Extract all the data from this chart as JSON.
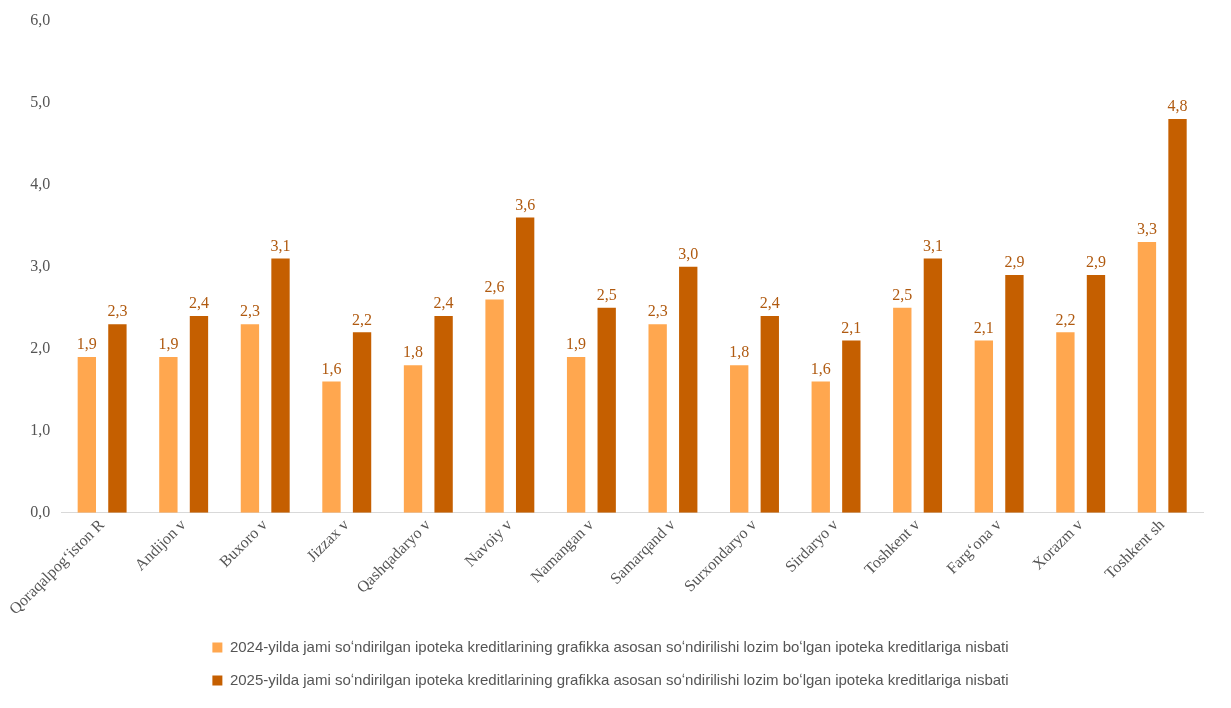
{
  "chart_data": {
    "type": "bar",
    "categories": [
      "Qoraqalpogʻiston R",
      "Andijon v",
      "Buxoro v",
      "Jizzax v",
      "Qashqadaryo v",
      "Navoiy v",
      "Namangan v",
      "Samarqand v",
      "Surxondaryo v",
      "Sirdaryo v",
      "Toshkent v",
      "Fargʻona v",
      "Xorazm v",
      "Toshkent sh"
    ],
    "series": [
      {
        "name": "2024-yilda jami soʻndirilgan ipoteka kreditlarining grafikka asosan soʻndirilishi lozim boʻlgan ipoteka kreditlariga nisbati",
        "color": "#ffa74f",
        "values": [
          1.9,
          1.9,
          2.3,
          1.6,
          1.8,
          2.6,
          1.9,
          2.3,
          1.8,
          1.6,
          2.5,
          2.1,
          2.2,
          3.3
        ],
        "value_labels": [
          "1,9",
          "1,9",
          "2,3",
          "1,6",
          "1,8",
          "2,6",
          "1,9",
          "2,3",
          "1,8",
          "1,6",
          "2,5",
          "2,1",
          "2,2",
          "3,3"
        ]
      },
      {
        "name": "2025-yilda jami soʻndirilgan ipoteka kreditlarining grafikka asosan soʻndirilishi lozim boʻlgan ipoteka kreditlariga nisbati",
        "color": "#c55f00",
        "values": [
          2.3,
          2.4,
          3.1,
          2.2,
          2.4,
          3.6,
          2.5,
          3.0,
          2.4,
          2.1,
          3.1,
          2.9,
          2.9,
          4.8
        ],
        "value_labels": [
          "2,3",
          "2,4",
          "3,1",
          "2,2",
          "2,4",
          "3,6",
          "2,5",
          "3,0",
          "2,4",
          "2,1",
          "3,1",
          "2,9",
          "2,9",
          "4,8"
        ]
      }
    ],
    "ylim": [
      0,
      6
    ],
    "yticks": [
      {
        "value": 0,
        "label": "0,0"
      },
      {
        "value": 1,
        "label": "1,0"
      },
      {
        "value": 2,
        "label": "2,0"
      },
      {
        "value": 3,
        "label": "3,0"
      },
      {
        "value": 4,
        "label": "4,0"
      },
      {
        "value": 5,
        "label": "5,0"
      },
      {
        "value": 6,
        "label": "6,0"
      }
    ],
    "grid": false,
    "legend": "bottom"
  }
}
